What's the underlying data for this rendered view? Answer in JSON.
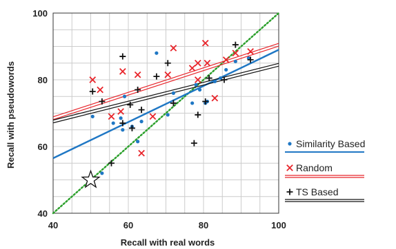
{
  "chart_data": {
    "type": "scatter",
    "xlabel": "Recall with real words",
    "ylabel": "Recall with pseudowords",
    "xlim": [
      40,
      100
    ],
    "ylim": [
      40,
      100
    ],
    "xticks": [
      40,
      60,
      80,
      100
    ],
    "yticks": [
      40,
      60,
      80,
      100
    ],
    "x_tick_labels": [
      "40",
      "60",
      "80",
      "100"
    ],
    "y_tick_labels": [
      "40",
      "60",
      "80",
      "100"
    ],
    "grid": true,
    "legend_position": "right",
    "colors": {
      "similarity": "#1f77c4",
      "random": "#e8242a",
      "ts": "#111111",
      "identity": "#2ca02c",
      "grid": "#cccccc",
      "axis": "#333333"
    },
    "series": [
      {
        "name": "Similarity Based",
        "marker": "dot",
        "trend": {
          "x": [
            40,
            100
          ],
          "y": [
            56.5,
            89
          ]
        },
        "points": [
          {
            "x": 50.5,
            "y": 69
          },
          {
            "x": 53,
            "y": 52
          },
          {
            "x": 56,
            "y": 67
          },
          {
            "x": 58,
            "y": 68.5
          },
          {
            "x": 58.5,
            "y": 65
          },
          {
            "x": 59,
            "y": 75
          },
          {
            "x": 61,
            "y": 66
          },
          {
            "x": 62.5,
            "y": 61.5
          },
          {
            "x": 63.5,
            "y": 67.5
          },
          {
            "x": 67.5,
            "y": 88
          },
          {
            "x": 70.5,
            "y": 69.5
          },
          {
            "x": 72,
            "y": 76
          },
          {
            "x": 77,
            "y": 73
          },
          {
            "x": 78,
            "y": 78.5
          },
          {
            "x": 79,
            "y": 77
          },
          {
            "x": 80.5,
            "y": 73
          },
          {
            "x": 81,
            "y": 73.5
          },
          {
            "x": 83,
            "y": 79.5
          },
          {
            "x": 84.5,
            "y": 80.5
          },
          {
            "x": 86,
            "y": 83
          },
          {
            "x": 88.5,
            "y": 85.5
          },
          {
            "x": 92,
            "y": 86.5
          }
        ]
      },
      {
        "name": "Random",
        "marker": "x",
        "trend": {
          "x": [
            40,
            100
          ],
          "y": [
            68.5,
            90.5
          ]
        },
        "points": [
          {
            "x": 50.5,
            "y": 80
          },
          {
            "x": 52.5,
            "y": 77
          },
          {
            "x": 55.5,
            "y": 69
          },
          {
            "x": 58,
            "y": 70.5
          },
          {
            "x": 58.5,
            "y": 82.5
          },
          {
            "x": 62.5,
            "y": 81.5
          },
          {
            "x": 63.5,
            "y": 58
          },
          {
            "x": 66.5,
            "y": 69
          },
          {
            "x": 70.5,
            "y": 81.5
          },
          {
            "x": 72,
            "y": 89.5
          },
          {
            "x": 77,
            "y": 83.5
          },
          {
            "x": 78.5,
            "y": 85
          },
          {
            "x": 78.5,
            "y": 80
          },
          {
            "x": 80.5,
            "y": 91
          },
          {
            "x": 81,
            "y": 85
          },
          {
            "x": 83,
            "y": 74.5
          },
          {
            "x": 86,
            "y": 86
          },
          {
            "x": 88.5,
            "y": 88
          },
          {
            "x": 92.5,
            "y": 88.5
          }
        ]
      },
      {
        "name": "TS Based",
        "marker": "plus",
        "trend": {
          "x": [
            40,
            100
          ],
          "y": [
            67.5,
            84.5
          ]
        },
        "points": [
          {
            "x": 50.5,
            "y": 76.5
          },
          {
            "x": 53,
            "y": 73.5
          },
          {
            "x": 55.5,
            "y": 55
          },
          {
            "x": 58.5,
            "y": 87
          },
          {
            "x": 58.5,
            "y": 67
          },
          {
            "x": 60.5,
            "y": 72.5
          },
          {
            "x": 61,
            "y": 65.5
          },
          {
            "x": 62.5,
            "y": 77
          },
          {
            "x": 63.5,
            "y": 71
          },
          {
            "x": 67.5,
            "y": 81
          },
          {
            "x": 70.5,
            "y": 85
          },
          {
            "x": 72,
            "y": 73
          },
          {
            "x": 77.5,
            "y": 61
          },
          {
            "x": 78.5,
            "y": 69.5
          },
          {
            "x": 80.5,
            "y": 73.5
          },
          {
            "x": 81.5,
            "y": 80.5
          },
          {
            "x": 85.5,
            "y": 80
          },
          {
            "x": 88.5,
            "y": 90.5
          },
          {
            "x": 92.5,
            "y": 86
          }
        ]
      }
    ],
    "identity_line": {
      "x": [
        40,
        100
      ],
      "y": [
        40,
        100
      ]
    },
    "annotation": {
      "marker": "star",
      "x": 50,
      "y": 50
    }
  }
}
